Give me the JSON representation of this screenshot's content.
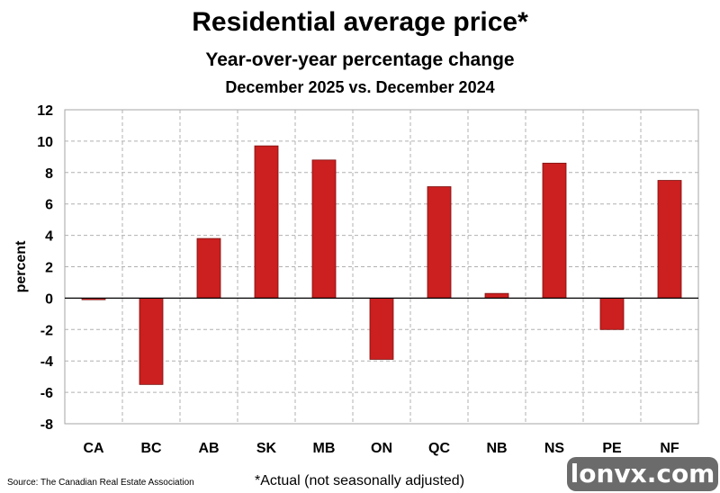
{
  "chart_data": {
    "type": "bar",
    "title": "Residential average price*",
    "subtitle": "Year-over-year percentage change",
    "subtitle2": "December 2025 vs. December 2024",
    "ylabel": "percent",
    "xlabel": "",
    "categories": [
      "CA",
      "BC",
      "AB",
      "SK",
      "MB",
      "ON",
      "QC",
      "NB",
      "NS",
      "PE",
      "NF"
    ],
    "values": [
      -0.1,
      -5.5,
      3.8,
      9.7,
      8.8,
      -3.9,
      7.1,
      0.3,
      8.6,
      -2.0,
      7.5
    ],
    "ylim": [
      -8,
      12
    ],
    "yticks": [
      -8,
      -6,
      -4,
      -2,
      0,
      2,
      4,
      6,
      8,
      10,
      12
    ],
    "bar_color": "#cc1f1f",
    "grid": true
  },
  "footer": {
    "source": "Source: The Canadian Real Estate Association",
    "footnote": "*Actual (not seasonally adjusted)"
  },
  "watermark": "lonvx.com"
}
